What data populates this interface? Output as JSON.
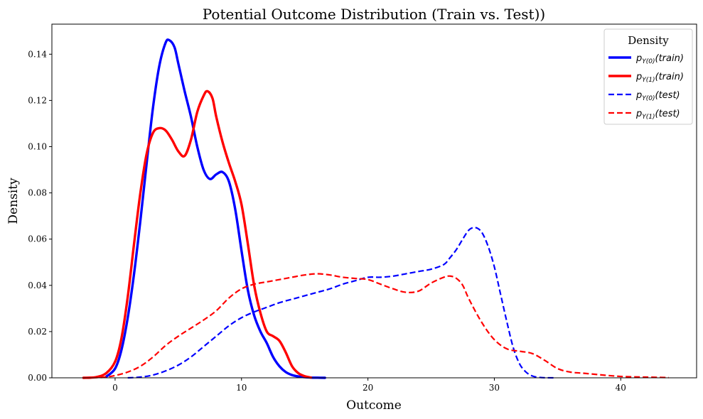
{
  "chart_data": {
    "type": "line",
    "title": "Potential Outcome Distribution (Train vs. Test))",
    "xlabel": "Outcome",
    "ylabel": "Density",
    "xlim": [
      -5,
      46
    ],
    "ylim": [
      0,
      0.153
    ],
    "x_ticks": [
      0,
      10,
      20,
      30,
      40
    ],
    "x_tick_labels": [
      "0",
      "10",
      "20",
      "30",
      "40"
    ],
    "y_ticks": [
      0,
      0.02,
      0.04,
      0.06,
      0.08,
      0.1,
      0.12,
      0.14
    ],
    "y_tick_labels": [
      "0.00",
      "0.02",
      "0.04",
      "0.06",
      "0.08",
      "0.10",
      "0.12",
      "0.14"
    ],
    "grid": false,
    "legend": {
      "title": "Density",
      "placement": "top-right"
    },
    "series": [
      {
        "name": "p_{Y(0)}(train)",
        "label_base": "p",
        "label_sub": "Y(0)",
        "label_arg": "(train)",
        "color": "#0000ff",
        "style": "solid",
        "x": [
          -0.7,
          0,
          0.5,
          1,
          1.5,
          2,
          2.5,
          3,
          3.5,
          4,
          4.3,
          4.7,
          5,
          5.5,
          6,
          6.5,
          7,
          7.5,
          8,
          8.5,
          9,
          9.5,
          10,
          10.5,
          11,
          11.5,
          12,
          12.5,
          13,
          13.5,
          14,
          14.5,
          15,
          15.5,
          16,
          16.6
        ],
        "y": [
          0.0005,
          0.004,
          0.012,
          0.026,
          0.045,
          0.068,
          0.093,
          0.117,
          0.135,
          0.145,
          0.146,
          0.143,
          0.136,
          0.124,
          0.113,
          0.1,
          0.09,
          0.086,
          0.088,
          0.089,
          0.085,
          0.073,
          0.055,
          0.038,
          0.027,
          0.02,
          0.015,
          0.009,
          0.005,
          0.0025,
          0.0012,
          0.0006,
          0.0003,
          0.0001,
          5e-05,
          0.0
        ]
      },
      {
        "name": "p_{Y(1)}(train)",
        "label_base": "p",
        "label_sub": "Y(1)",
        "label_arg": "(train)",
        "color": "#ff0000",
        "style": "solid",
        "x": [
          -2.5,
          -1.5,
          -0.7,
          0,
          0.5,
          1,
          1.5,
          2,
          2.5,
          3,
          3.5,
          4,
          4.5,
          5,
          5.5,
          6,
          6.5,
          7,
          7.3,
          7.7,
          8,
          8.5,
          9,
          9.5,
          10,
          10.5,
          11,
          11.5,
          12,
          12.5,
          13,
          13.5,
          14,
          14.5,
          15,
          15.5
        ],
        "y": [
          0.0,
          0.0003,
          0.002,
          0.007,
          0.017,
          0.035,
          0.058,
          0.08,
          0.097,
          0.106,
          0.108,
          0.107,
          0.103,
          0.098,
          0.096,
          0.103,
          0.115,
          0.122,
          0.124,
          0.121,
          0.113,
          0.102,
          0.093,
          0.085,
          0.075,
          0.058,
          0.04,
          0.028,
          0.02,
          0.018,
          0.016,
          0.011,
          0.005,
          0.002,
          0.0007,
          0.0001
        ]
      },
      {
        "name": "p_{Y(0)}(test)",
        "label_base": "p",
        "label_sub": "Y(0)",
        "label_arg": "(test)",
        "color": "#0000ff",
        "style": "dashed",
        "x": [
          1,
          2,
          3,
          4,
          5,
          6,
          7,
          8,
          9,
          10,
          11,
          12,
          13,
          14,
          15,
          16,
          17,
          18,
          19,
          20,
          21,
          22,
          23,
          24,
          25,
          26,
          26.5,
          27,
          27.5,
          28,
          28.5,
          29,
          29.5,
          30,
          30.5,
          31,
          31.5,
          32,
          32.5,
          33,
          33.5,
          34,
          34.8
        ],
        "y": [
          0.0,
          0.0003,
          0.0012,
          0.003,
          0.0055,
          0.009,
          0.0135,
          0.018,
          0.0225,
          0.026,
          0.0285,
          0.0305,
          0.0325,
          0.034,
          0.0355,
          0.037,
          0.0385,
          0.0405,
          0.042,
          0.0435,
          0.0435,
          0.044,
          0.045,
          0.046,
          0.047,
          0.049,
          0.052,
          0.0555,
          0.06,
          0.064,
          0.065,
          0.063,
          0.057,
          0.048,
          0.036,
          0.024,
          0.013,
          0.006,
          0.0025,
          0.0008,
          0.0002,
          5e-05,
          0.0
        ]
      },
      {
        "name": "p_{Y(1)}(test)",
        "label_base": "p",
        "label_sub": "Y(1)",
        "label_arg": "(test)",
        "color": "#ff0000",
        "style": "dashed",
        "x": [
          -2.5,
          -1,
          0,
          1,
          2,
          3,
          4,
          5,
          6,
          7,
          8,
          9,
          10,
          11,
          12,
          13,
          14,
          15,
          16,
          17,
          18,
          19,
          20,
          21,
          22,
          23,
          24,
          25,
          26,
          26.5,
          27,
          27.5,
          28,
          29,
          30,
          31,
          32,
          33,
          34,
          35,
          36,
          37,
          38,
          39,
          40,
          41,
          42,
          43,
          43.8
        ],
        "y": [
          0.0,
          0.0002,
          0.001,
          0.0025,
          0.005,
          0.009,
          0.014,
          0.018,
          0.0215,
          0.025,
          0.029,
          0.0345,
          0.0385,
          0.0405,
          0.0415,
          0.0425,
          0.0435,
          0.0445,
          0.045,
          0.0445,
          0.0435,
          0.043,
          0.0425,
          0.0405,
          0.0385,
          0.037,
          0.0375,
          0.041,
          0.0435,
          0.044,
          0.043,
          0.04,
          0.034,
          0.024,
          0.0165,
          0.0125,
          0.0115,
          0.0105,
          0.0075,
          0.004,
          0.0025,
          0.002,
          0.0015,
          0.001,
          0.0006,
          0.0004,
          0.0003,
          0.0002,
          0.0001
        ]
      }
    ]
  }
}
